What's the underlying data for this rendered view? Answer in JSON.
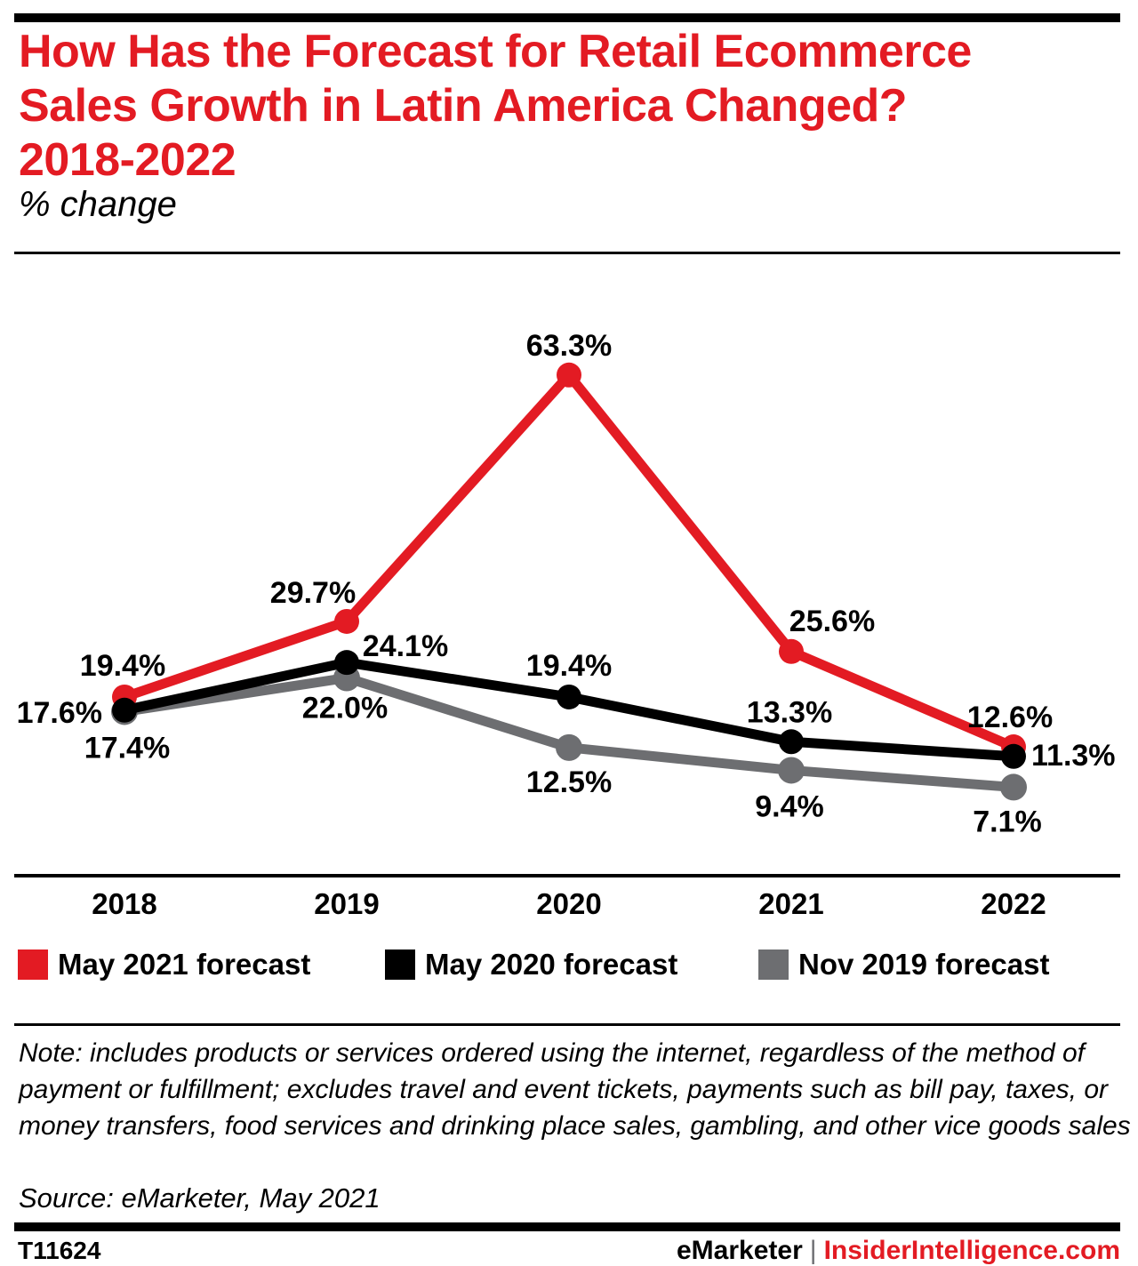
{
  "header": {
    "title_lines": [
      "How Has the Forecast for Retail Ecommerce",
      "Sales Growth in Latin America Changed?",
      "2018-2022"
    ],
    "subtitle": "% change"
  },
  "chart_data": {
    "type": "line",
    "title": "How Has the Forecast for Retail Ecommerce Sales Growth in Latin America Changed? 2018-2022",
    "ylabel": "% change",
    "categories": [
      "2018",
      "2019",
      "2020",
      "2021",
      "2022"
    ],
    "series": [
      {
        "name": "May 2021 forecast",
        "color": "#e31b23",
        "values": [
          19.4,
          29.7,
          63.3,
          25.6,
          12.6
        ],
        "label_offsets": [
          {
            "dx": -2,
            "dy": -24,
            "anchor": "middle"
          },
          {
            "dx": -38,
            "dy": -21,
            "anchor": "middle"
          },
          {
            "dx": 0,
            "dy": -22,
            "anchor": "middle"
          },
          {
            "dx": 46,
            "dy": -23,
            "anchor": "middle"
          },
          {
            "dx": -4,
            "dy": -22,
            "anchor": "middle"
          }
        ]
      },
      {
        "name": "May 2020 forecast",
        "color": "#000000",
        "values": [
          17.6,
          24.1,
          19.4,
          13.3,
          11.3
        ],
        "label_offsets": [
          {
            "dx": -25,
            "dy": 14,
            "anchor": "end"
          },
          {
            "dx": 66,
            "dy": -7,
            "anchor": "middle"
          },
          {
            "dx": 0,
            "dy": -24,
            "anchor": "middle"
          },
          {
            "dx": -2,
            "dy": -22,
            "anchor": "middle"
          },
          {
            "dx": 20,
            "dy": 10,
            "anchor": "start"
          }
        ]
      },
      {
        "name": "Nov 2019 forecast",
        "color": "#6d6e71",
        "values": [
          17.4,
          22.0,
          12.5,
          9.4,
          7.1
        ],
        "label_offsets": [
          {
            "dx": 3,
            "dy": 52,
            "anchor": "middle"
          },
          {
            "dx": -2,
            "dy": 45,
            "anchor": "middle"
          },
          {
            "dx": 0,
            "dy": 50,
            "anchor": "middle"
          },
          {
            "dx": -2,
            "dy": 52,
            "anchor": "middle"
          },
          {
            "dx": -7,
            "dy": 50,
            "anchor": "middle"
          }
        ]
      }
    ],
    "value_suffix": "%",
    "data_labels": true,
    "legend_position": "bottom",
    "grid": false,
    "y_axis_visible": false,
    "draw_order": [
      2,
      0,
      1
    ]
  },
  "footer": {
    "note": "Note: includes products or services ordered using the internet, regardless of the method of payment or fulfillment; excludes travel and event tickets, payments such as bill pay, taxes, or money transfers, food services and drinking place sales, gambling, and other vice goods sales",
    "source": "Source: eMarketer, May 2021",
    "chart_id": "T11624",
    "brand_left": "eMarketer",
    "brand_separator": "|",
    "brand_right": "InsiderIntelligence.com"
  }
}
